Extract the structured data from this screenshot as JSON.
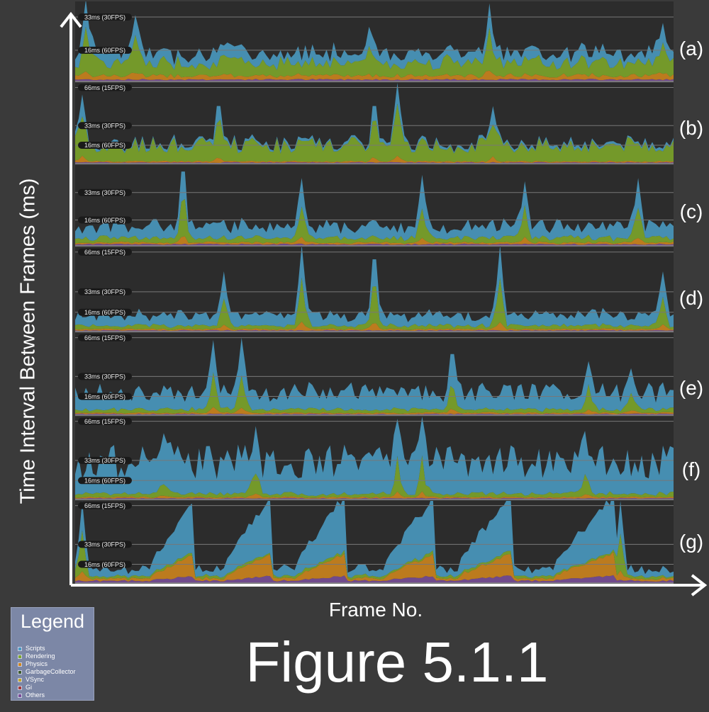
{
  "figure_title": "Figure 5.1.1",
  "ylabel": "Time Interval Between Frames (ms)",
  "xlabel": "Frame No.",
  "legend": {
    "title": "Legend",
    "items": [
      {
        "label": "Scripts",
        "color": "#4a9cc4"
      },
      {
        "label": "Rendering",
        "color": "#7ea82a"
      },
      {
        "label": "Physics",
        "color": "#d0861c"
      },
      {
        "label": "GarbageCollector",
        "color": "#3e5c2e"
      },
      {
        "label": "VSync",
        "color": "#c4a828"
      },
      {
        "label": "Gi",
        "color": "#a83a3a"
      },
      {
        "label": "Others",
        "color": "#7a4e9a"
      }
    ]
  },
  "colors": {
    "background": "#3a3a3a",
    "panel_background": "#2c2c2c",
    "guide_line": "#777777",
    "axis": "#ffffff"
  },
  "chart_data": [
    {
      "panel": "(a)",
      "type": "area",
      "guide_labels": [
        "33ms (30FPS)",
        "16ms (60FPS)"
      ],
      "guide_values_ms": [
        33,
        16
      ],
      "ylim": [
        0,
        41
      ],
      "baseline_ms": {
        "Scripts": 5,
        "Rendering": 7,
        "Physics": 2,
        "Others": 1
      },
      "spikes": [
        {
          "frame_fraction": 0.02,
          "ms": 42
        },
        {
          "frame_fraction": 0.1,
          "ms": 34
        },
        {
          "frame_fraction": 0.49,
          "ms": 28
        },
        {
          "frame_fraction": 0.69,
          "ms": 40
        },
        {
          "frame_fraction": 0.98,
          "ms": 30
        }
      ]
    },
    {
      "panel": "(b)",
      "type": "area",
      "guide_labels": [
        "66ms (15FPS)",
        "33ms (30FPS)",
        "16ms (60FPS)"
      ],
      "guide_values_ms": [
        66,
        33,
        16
      ],
      "ylim": [
        0,
        70
      ],
      "baseline_ms": {
        "Scripts": 2,
        "Rendering": 14,
        "Physics": 1,
        "Others": 1
      },
      "spikes": [
        {
          "frame_fraction": 0.01,
          "ms": 60
        },
        {
          "frame_fraction": 0.24,
          "ms": 50
        },
        {
          "frame_fraction": 0.5,
          "ms": 50
        },
        {
          "frame_fraction": 0.54,
          "ms": 70
        },
        {
          "frame_fraction": 0.7,
          "ms": 50
        }
      ]
    },
    {
      "panel": "(c)",
      "type": "area",
      "guide_labels": [
        "33ms (30FPS)",
        "16ms (60FPS)"
      ],
      "guide_values_ms": [
        33,
        16
      ],
      "ylim": [
        0,
        50
      ],
      "baseline_ms": {
        "Scripts": 7,
        "Rendering": 3,
        "Physics": 1,
        "Others": 1
      },
      "spikes": [
        {
          "frame_fraction": 0.18,
          "ms": 46
        },
        {
          "frame_fraction": 0.38,
          "ms": 42
        },
        {
          "frame_fraction": 0.58,
          "ms": 44
        },
        {
          "frame_fraction": 0.75,
          "ms": 40
        },
        {
          "frame_fraction": 0.94,
          "ms": 42
        }
      ]
    },
    {
      "panel": "(d)",
      "type": "area",
      "guide_labels": [
        "66ms (15FPS)",
        "33ms (30FPS)",
        "16ms (60FPS)"
      ],
      "guide_values_ms": [
        66,
        33,
        16
      ],
      "ylim": [
        0,
        70
      ],
      "baseline_ms": {
        "Scripts": 8,
        "Rendering": 3,
        "Physics": 1,
        "Others": 1
      },
      "spikes": [
        {
          "frame_fraction": 0.38,
          "ms": 72
        },
        {
          "frame_fraction": 0.5,
          "ms": 60
        },
        {
          "frame_fraction": 0.71,
          "ms": 72
        },
        {
          "frame_fraction": 0.25,
          "ms": 50
        },
        {
          "frame_fraction": 0.98,
          "ms": 50
        }
      ]
    },
    {
      "panel": "(e)",
      "type": "area",
      "guide_labels": [
        "66ms (15FPS)",
        "33ms (30FPS)",
        "16ms (60FPS)"
      ],
      "guide_values_ms": [
        66,
        33,
        16
      ],
      "ylim": [
        0,
        70
      ],
      "baseline_ms": {
        "Scripts": 14,
        "Rendering": 3,
        "Physics": 1,
        "Others": 1
      },
      "spikes": [
        {
          "frame_fraction": 0.23,
          "ms": 64
        },
        {
          "frame_fraction": 0.28,
          "ms": 66
        },
        {
          "frame_fraction": 0.63,
          "ms": 52
        },
        {
          "frame_fraction": 0.86,
          "ms": 46
        },
        {
          "frame_fraction": 0.93,
          "ms": 40
        }
      ]
    },
    {
      "panel": "(f)",
      "type": "area",
      "guide_labels": [
        "66ms (15FPS)",
        "33ms (30FPS)",
        "16ms (60FPS)"
      ],
      "guide_values_ms": [
        66,
        33,
        16
      ],
      "ylim": [
        0,
        70
      ],
      "baseline_ms": {
        "Scripts": 26,
        "Rendering": 3,
        "Physics": 1,
        "Others": 1
      },
      "spikes": [
        {
          "frame_fraction": 0.54,
          "ms": 68
        },
        {
          "frame_fraction": 0.58,
          "ms": 70
        },
        {
          "frame_fraction": 0.3,
          "ms": 62
        },
        {
          "frame_fraction": 0.85,
          "ms": 58
        },
        {
          "frame_fraction": 0.15,
          "ms": 56
        }
      ]
    },
    {
      "panel": "(g)",
      "type": "area",
      "guide_labels": [
        "66ms (15FPS)",
        "33ms (30FPS)",
        "16ms (60FPS)"
      ],
      "guide_values_ms": [
        66,
        33,
        16
      ],
      "ylim": [
        0,
        70
      ],
      "baseline_ms": {
        "Scripts": 6,
        "Rendering": 2,
        "Physics": 2,
        "Others": 2
      },
      "ramps": [
        {
          "start_fraction": 0.13,
          "end_fraction": 0.2,
          "peak_ms": 68
        },
        {
          "start_fraction": 0.25,
          "end_fraction": 0.33,
          "peak_ms": 68
        },
        {
          "start_fraction": 0.37,
          "end_fraction": 0.45,
          "peak_ms": 68
        },
        {
          "start_fraction": 0.52,
          "end_fraction": 0.6,
          "peak_ms": 68
        },
        {
          "start_fraction": 0.64,
          "end_fraction": 0.73,
          "peak_ms": 68
        },
        {
          "start_fraction": 0.8,
          "end_fraction": 0.9,
          "peak_ms": 68
        }
      ],
      "spikes": [
        {
          "frame_fraction": 0.01,
          "ms": 70
        },
        {
          "frame_fraction": 0.91,
          "ms": 70
        }
      ]
    }
  ]
}
